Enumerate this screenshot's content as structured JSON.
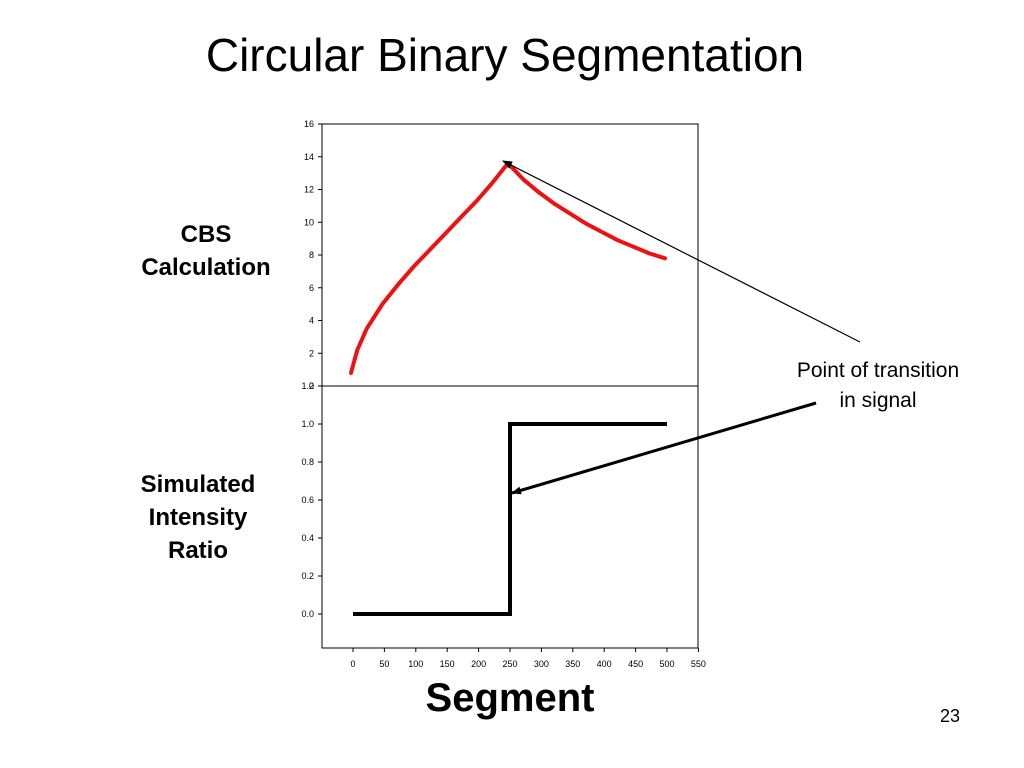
{
  "slide": {
    "title": "Circular Binary Segmentation",
    "page_number": "23",
    "label_top": [
      "CBS",
      "Calculation"
    ],
    "label_bottom": [
      "Simulated",
      "Intensity",
      "Ratio"
    ],
    "annotation": [
      "Point of transition",
      "in signal"
    ],
    "xlabel": "Segment"
  },
  "chart_data": [
    {
      "type": "line",
      "title": "",
      "xlabel": "",
      "ylabel": "",
      "xlim": [
        0,
        550
      ],
      "ylim": [
        0,
        16
      ],
      "yticks": [
        "0",
        "2",
        "4",
        "6",
        "8",
        "10",
        "12",
        "14",
        "16"
      ],
      "color": "#ee1111",
      "series": [
        {
          "x": [
            0,
            10,
            25,
            50,
            75,
            100,
            125,
            150,
            175,
            200,
            225,
            250,
            275,
            300,
            325,
            350,
            375,
            400,
            425,
            450,
            475,
            500
          ],
          "values": [
            0.8,
            2.2,
            3.5,
            5.0,
            6.2,
            7.3,
            8.3,
            9.3,
            10.3,
            11.3,
            12.4,
            13.6,
            12.6,
            11.8,
            11.1,
            10.5,
            9.9,
            9.4,
            8.9,
            8.5,
            8.1,
            7.8
          ]
        }
      ]
    },
    {
      "type": "line",
      "title": "",
      "xlabel": "Segment",
      "ylabel": "",
      "xlim": [
        -50,
        550
      ],
      "ylim": [
        -0.2,
        1.2
      ],
      "yticks": [
        "0.0",
        "0.2",
        "0.4",
        "0.6",
        "0.8",
        "1.0",
        "1.2"
      ],
      "xticks": [
        "0",
        "50",
        "100",
        "150",
        "200",
        "250",
        "300",
        "350",
        "400",
        "450",
        "500",
        "550"
      ],
      "color": "#000000",
      "series": [
        {
          "x": [
            0,
            250,
            250,
            500
          ],
          "values": [
            0.0,
            0.0,
            1.0,
            1.0
          ]
        }
      ]
    }
  ]
}
